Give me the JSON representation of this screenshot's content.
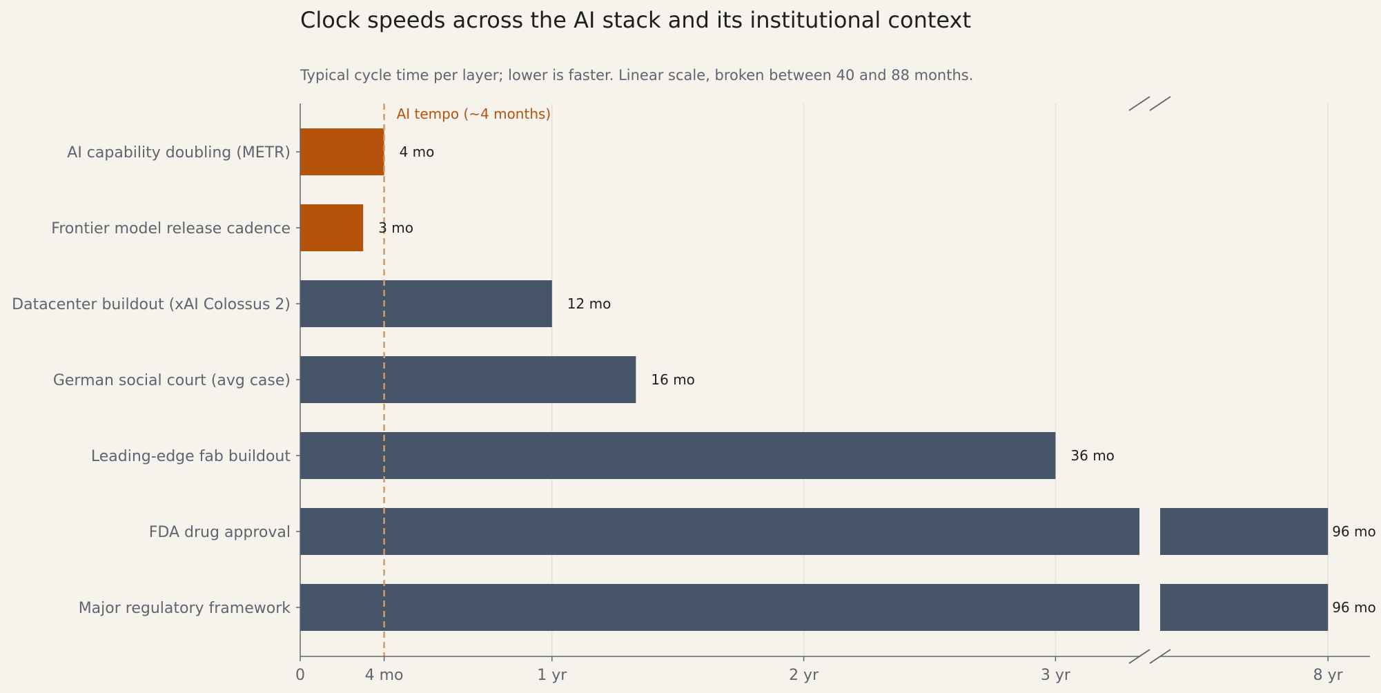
{
  "chart_data": {
    "type": "bar",
    "orientation": "horizontal",
    "title": "Clock speeds across the AI stack and its institutional context",
    "subtitle": "Typical cycle time per layer; lower is faster. Linear scale, broken between 40 and 88 months.",
    "categories": [
      "AI capability doubling (METR)",
      "Frontier model release cadence",
      "Datacenter buildout (xAI Colossus 2)",
      "German social court (avg case)",
      "Leading-edge fab buildout",
      "FDA drug approval",
      "Major regulatory framework"
    ],
    "values": [
      4,
      3,
      12,
      16,
      36,
      96,
      96
    ],
    "value_labels": [
      "4 mo",
      "3 mo",
      "12 mo",
      "16 mo",
      "36 mo",
      "96 mo",
      "96 mo"
    ],
    "highlight": [
      true,
      true,
      false,
      false,
      false,
      false,
      false
    ],
    "x_unit": "months",
    "x_ticks": [
      {
        "value": 0,
        "label": "0"
      },
      {
        "value": 4,
        "label": "4 mo"
      },
      {
        "value": 12,
        "label": "1 yr"
      },
      {
        "value": 24,
        "label": "2 yr"
      },
      {
        "value": 36,
        "label": "3 yr"
      },
      {
        "value": 96,
        "label": "8 yr"
      }
    ],
    "axis_break": [
      40,
      88
    ],
    "xlim": [
      0,
      101
    ],
    "reference_line": {
      "value": 4,
      "label": "AI tempo (~4 months)"
    },
    "grid": "vertical",
    "colors": {
      "highlight": "#b5530a",
      "default": "#475569",
      "reference": "#d49a6a",
      "background": "#f6f3ed",
      "axis": "#5f6470",
      "grid": "#e3e0da"
    }
  }
}
